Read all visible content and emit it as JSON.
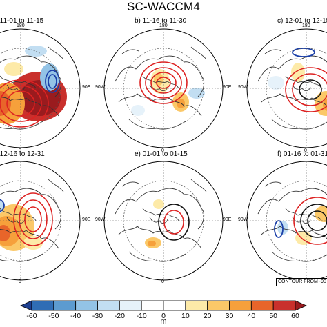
{
  "figure": {
    "title": "SC-WACCM4",
    "contour_note": "CONTOUR FROM -90",
    "colorbar": {
      "ticks": [
        "-60",
        "-50",
        "-40",
        "-30",
        "-20",
        "-10",
        "0",
        "10",
        "20",
        "30",
        "40",
        "50",
        "60"
      ],
      "unit": "m",
      "colors": [
        "#1d3f8f",
        "#2f6db5",
        "#5c9bd0",
        "#93c3e6",
        "#c2def2",
        "#e6f2fa",
        "#ffffff",
        "#ffffff",
        "#fdeaa8",
        "#fbc868",
        "#f6a03b",
        "#e8652a",
        "#c9302c",
        "#9a1b1e"
      ]
    },
    "panels": [
      {
        "id": "a",
        "title": "a) 11-01 to 11-15",
        "top_label": "180",
        "left_label": "",
        "right_label": "90E",
        "bottom_label": "0"
      },
      {
        "id": "b",
        "title": "b) 11-16 to 11-30",
        "top_label": "180",
        "left_label": "90W",
        "right_label": "90E",
        "bottom_label": "0"
      },
      {
        "id": "c",
        "title": "c) 12-01 to 12-15",
        "top_label": "180",
        "left_label": "90W",
        "right_label": "",
        "bottom_label": "0"
      },
      {
        "id": "d",
        "title": "d) 12-16 to 12-31",
        "top_label": "",
        "left_label": "",
        "right_label": "90E",
        "bottom_label": "0"
      },
      {
        "id": "e",
        "title": "e) 01-01 to 01-15",
        "top_label": "",
        "left_label": "90W",
        "right_label": "90E",
        "bottom_label": "0"
      },
      {
        "id": "f",
        "title": "f) 01-16 to 01-31",
        "top_label": "",
        "left_label": "90W",
        "right_label": "",
        "bottom_label": "0"
      }
    ]
  }
}
